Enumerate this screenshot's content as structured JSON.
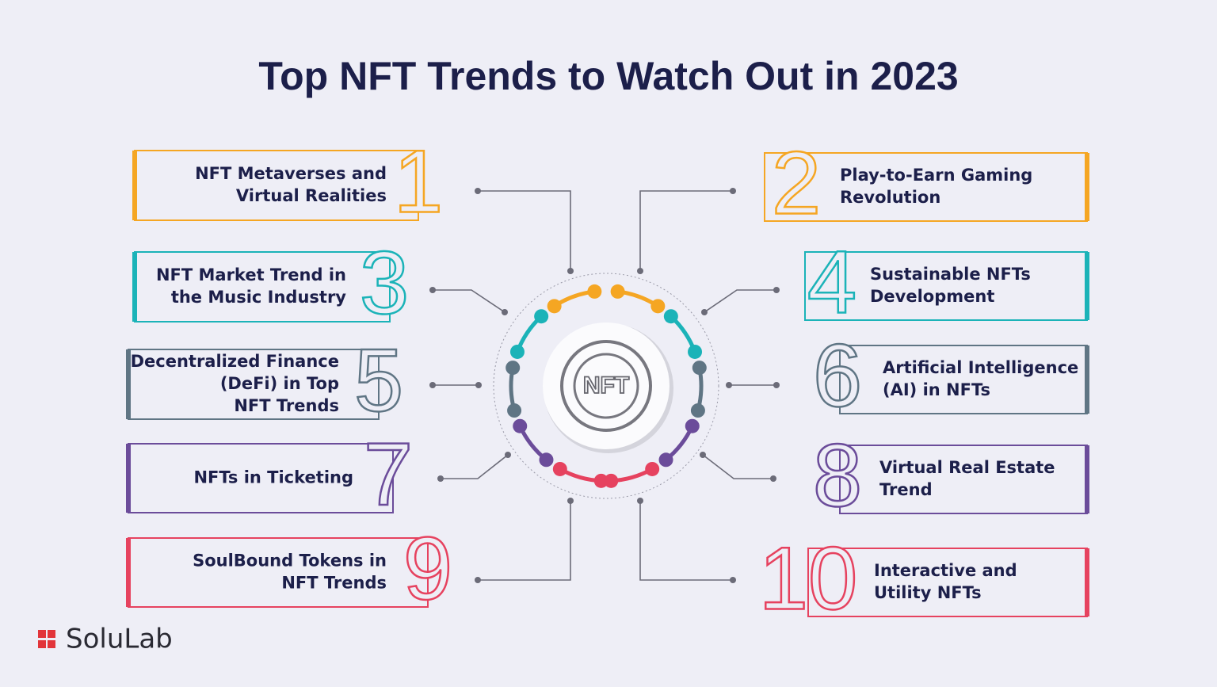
{
  "header": {
    "title": "Top NFT Trends to Watch Out in 2023"
  },
  "center": {
    "label": "NFT"
  },
  "items": [
    {
      "number": "1",
      "lines": [
        "NFT Metaverses and",
        "Virtual Realities"
      ]
    },
    {
      "number": "2",
      "lines": [
        "Play-to-Earn Gaming",
        "Revolution"
      ]
    },
    {
      "number": "3",
      "lines": [
        "NFT Market Trend in",
        "the Music Industry"
      ]
    },
    {
      "number": "4",
      "lines": [
        "Sustainable NFTs",
        "Development"
      ]
    },
    {
      "number": "5",
      "lines": [
        "Decentralized Finance",
        "(DeFi) in Top",
        "NFT Trends"
      ]
    },
    {
      "number": "6",
      "lines": [
        "Artificial Intelligence",
        "(AI) in NFTs"
      ]
    },
    {
      "number": "7",
      "lines": [
        "NFTs in Ticketing"
      ]
    },
    {
      "number": "8",
      "lines": [
        "Virtual Real Estate",
        "Trend"
      ]
    },
    {
      "number": "9",
      "lines": [
        "SoulBound Tokens in",
        "NFT Trends"
      ]
    },
    {
      "number": "10",
      "lines": [
        "Interactive and",
        "Utility NFTs"
      ]
    }
  ],
  "footer": {
    "logo": "SoluLab"
  }
}
